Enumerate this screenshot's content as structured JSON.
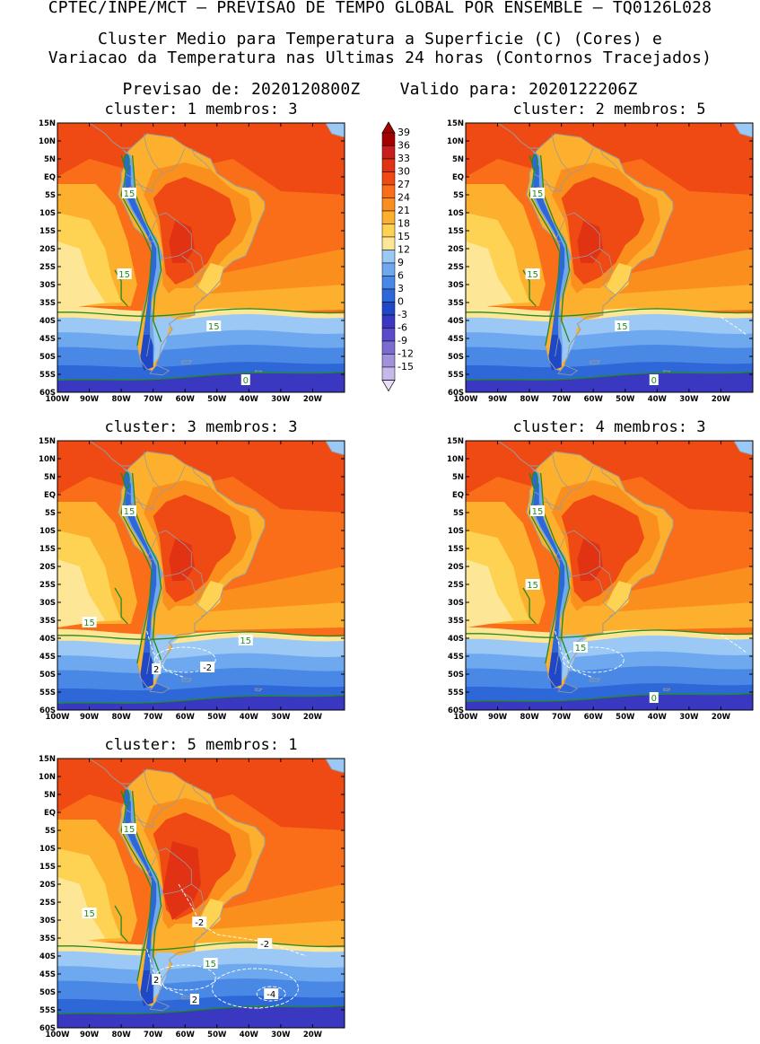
{
  "header": {
    "title": "CPTEC/INPE/MCT — PREVISAO DE TEMPO GLOBAL POR ENSEMBLE — TQ0126L028",
    "subtitle_1": "Cluster Medio para Temperatura a Superficie (C) (Cores) e",
    "subtitle_2": "Variacao da Temperatura nas Ultimas 24 horas (Contornos Tracejados)",
    "forecast_label": "Previsao de:",
    "forecast_value": "2020120800Z",
    "valid_label": "Valido para:",
    "valid_value": "2020122206Z"
  },
  "lat_ticks": [
    "15N",
    "10N",
    "5N",
    "EQ",
    "5S",
    "10S",
    "15S",
    "20S",
    "25S",
    "30S",
    "35S",
    "40S",
    "45S",
    "50S",
    "55S",
    "60S"
  ],
  "lon_ticks": [
    "100W",
    "90W",
    "80W",
    "70W",
    "60W",
    "50W",
    "40W",
    "30W",
    "20W"
  ],
  "panels": [
    {
      "title": "cluster: 1   membros: 3",
      "cluster": 1,
      "membros": 3,
      "labels": [
        {
          "text": "15",
          "type": "temp",
          "lon": -77.5,
          "lat": -4.5
        },
        {
          "text": "15",
          "type": "temp",
          "lon": -79,
          "lat": -27
        },
        {
          "text": "15",
          "type": "temp",
          "lon": -51,
          "lat": -41.5
        },
        {
          "text": "0",
          "type": "temp",
          "lon": -41,
          "lat": -56.5
        }
      ]
    },
    {
      "title": "cluster: 2   membros: 5",
      "cluster": 2,
      "membros": 5,
      "labels": [
        {
          "text": "15",
          "type": "temp",
          "lon": -77.5,
          "lat": -4.5
        },
        {
          "text": "15",
          "type": "temp",
          "lon": -79,
          "lat": -27
        },
        {
          "text": "15",
          "type": "temp",
          "lon": -51,
          "lat": -41.5
        },
        {
          "text": "0",
          "type": "temp",
          "lon": -41,
          "lat": -56.5
        }
      ]
    },
    {
      "title": "cluster: 3   membros: 3",
      "cluster": 3,
      "membros": 3,
      "labels": [
        {
          "text": "15",
          "type": "temp",
          "lon": -77.5,
          "lat": -4.5
        },
        {
          "text": "15",
          "type": "temp",
          "lon": -90,
          "lat": -35.5
        },
        {
          "text": "15",
          "type": "temp",
          "lon": -41,
          "lat": -40.5
        },
        {
          "text": "2",
          "type": "var",
          "lon": -69,
          "lat": -48.5
        },
        {
          "text": "-2",
          "type": "var",
          "lon": -53,
          "lat": -48
        }
      ]
    },
    {
      "title": "cluster: 4   membros: 3",
      "cluster": 4,
      "membros": 3,
      "labels": [
        {
          "text": "15",
          "type": "temp",
          "lon": -77.5,
          "lat": -4.5
        },
        {
          "text": "15",
          "type": "temp",
          "lon": -79,
          "lat": -25
        },
        {
          "text": "15",
          "type": "temp",
          "lon": -64,
          "lat": -42.5
        },
        {
          "text": "0",
          "type": "temp",
          "lon": -41,
          "lat": -56.5
        }
      ]
    },
    {
      "title": "cluster: 5   membros: 1",
      "cluster": 5,
      "membros": 1,
      "labels": [
        {
          "text": "15",
          "type": "temp",
          "lon": -77.5,
          "lat": -4.5
        },
        {
          "text": "15",
          "type": "temp",
          "lon": -90,
          "lat": -28
        },
        {
          "text": "-2",
          "type": "var",
          "lon": -55.5,
          "lat": -30.5
        },
        {
          "text": "-2",
          "type": "var",
          "lon": -35,
          "lat": -36.5
        },
        {
          "text": "15",
          "type": "temp",
          "lon": -52,
          "lat": -42
        },
        {
          "text": "2",
          "type": "var",
          "lon": -69,
          "lat": -46.5
        },
        {
          "text": "2",
          "type": "var",
          "lon": -57,
          "lat": -52
        },
        {
          "text": "-4",
          "type": "var",
          "lon": -33,
          "lat": -50.5
        }
      ]
    }
  ],
  "colorbar": {
    "levels": [
      "39",
      "36",
      "33",
      "30",
      "27",
      "24",
      "21",
      "18",
      "15",
      "12",
      "9",
      "6",
      "3",
      "0",
      "-3",
      "-6",
      "-9",
      "-12",
      "-15"
    ],
    "colors": [
      "#a50000",
      "#c81e1e",
      "#e13214",
      "#f04a14",
      "#fa6e19",
      "#fb8f1e",
      "#fdb02d",
      "#fed253",
      "#fde796",
      "#9bc8f5",
      "#6ea8ee",
      "#4a88e6",
      "#2e68d8",
      "#1f48c8",
      "#3a38c0",
      "#5a4cc8",
      "#7c6cd2",
      "#a292dc",
      "#c6b8ea"
    ],
    "top_arrow_color": "#a50000",
    "bottom_arrow_color": "#e6e0f5"
  },
  "colors": {
    "temp_contour": "#228b22",
    "variation_contour": "#ffffff",
    "coastline": "#9a9a9a"
  }
}
